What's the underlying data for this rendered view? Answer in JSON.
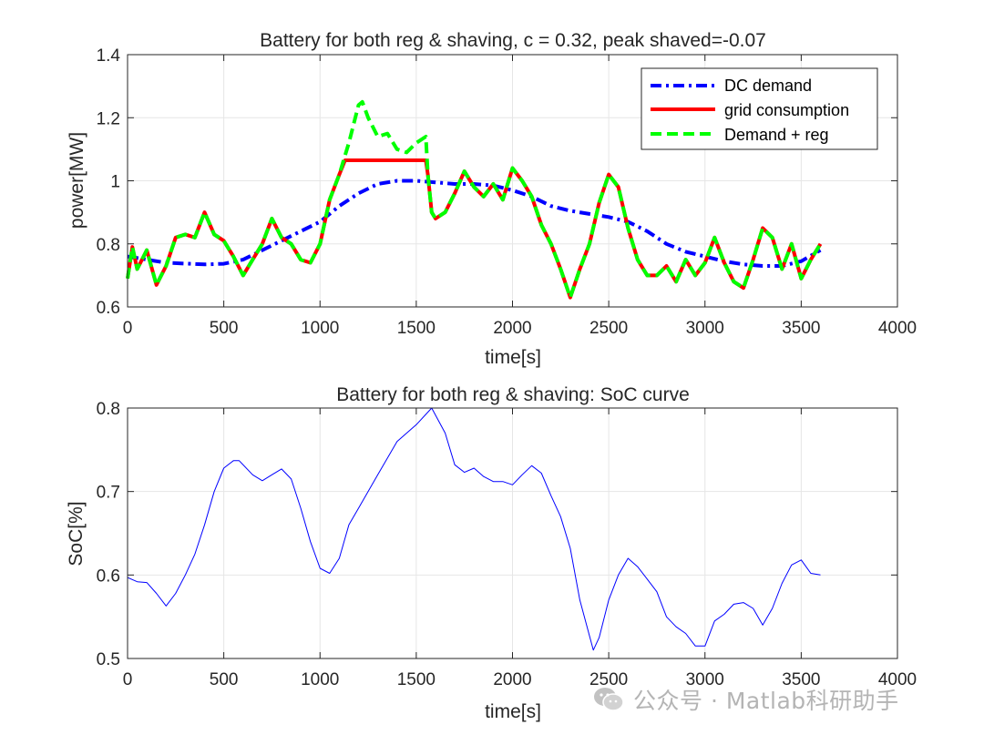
{
  "chart_data": [
    {
      "type": "line",
      "title": "Battery for both reg & shaving, c = 0.32, peak shaved=-0.07",
      "xlabel": "time[s]",
      "ylabel": "power[MW]",
      "xlim": [
        0,
        4000
      ],
      "ylim": [
        0.6,
        1.4
      ],
      "xticks": [
        0,
        500,
        1000,
        1500,
        2000,
        2500,
        3000,
        3500,
        4000
      ],
      "yticks": [
        0.6,
        0.8,
        1,
        1.2,
        1.4
      ],
      "ytick_labels": [
        "0.6",
        "0.8",
        "1",
        "1.2",
        "1.4"
      ],
      "grid": true,
      "legend_position": "top-right",
      "series": [
        {
          "name": "DC demand",
          "color": "#0000ff",
          "style": "dashdot",
          "x": [
            0,
            200,
            400,
            500,
            600,
            700,
            800,
            900,
            1000,
            1100,
            1200,
            1300,
            1400,
            1500,
            1600,
            1700,
            1800,
            1900,
            2000,
            2100,
            2200,
            2300,
            2400,
            2500,
            2600,
            2700,
            2800,
            2900,
            3000,
            3100,
            3200,
            3300,
            3400,
            3500,
            3600
          ],
          "y": [
            0.76,
            0.74,
            0.735,
            0.737,
            0.75,
            0.78,
            0.81,
            0.84,
            0.87,
            0.92,
            0.96,
            0.99,
            1.0,
            1.0,
            0.995,
            0.99,
            0.99,
            0.985,
            0.97,
            0.95,
            0.92,
            0.905,
            0.895,
            0.885,
            0.87,
            0.84,
            0.8,
            0.775,
            0.76,
            0.745,
            0.735,
            0.73,
            0.73,
            0.745,
            0.78
          ]
        },
        {
          "name": "grid consumption",
          "color": "#ff0000",
          "style": "solid",
          "x": [
            0,
            25,
            50,
            100,
            150,
            200,
            250,
            300,
            350,
            400,
            450,
            500,
            550,
            600,
            650,
            700,
            750,
            800,
            850,
            900,
            950,
            1000,
            1050,
            1100,
            1130,
            1550,
            1560,
            1580,
            1600,
            1650,
            1700,
            1750,
            1800,
            1850,
            1900,
            1950,
            2000,
            2050,
            2100,
            2150,
            2200,
            2250,
            2300,
            2350,
            2400,
            2450,
            2500,
            2550,
            2600,
            2650,
            2700,
            2750,
            2800,
            2850,
            2900,
            2950,
            3000,
            3050,
            3100,
            3150,
            3200,
            3250,
            3300,
            3350,
            3400,
            3450,
            3500,
            3550,
            3600
          ],
          "y": [
            0.69,
            0.79,
            0.72,
            0.78,
            0.67,
            0.73,
            0.82,
            0.83,
            0.82,
            0.9,
            0.83,
            0.81,
            0.76,
            0.7,
            0.75,
            0.8,
            0.88,
            0.82,
            0.8,
            0.75,
            0.74,
            0.8,
            0.94,
            1.02,
            1.065,
            1.065,
            1.02,
            0.9,
            0.88,
            0.9,
            0.96,
            1.03,
            0.98,
            0.95,
            0.99,
            0.94,
            1.04,
            1.0,
            0.95,
            0.86,
            0.8,
            0.72,
            0.63,
            0.72,
            0.8,
            0.93,
            1.02,
            0.98,
            0.85,
            0.75,
            0.7,
            0.7,
            0.73,
            0.68,
            0.75,
            0.7,
            0.74,
            0.82,
            0.74,
            0.68,
            0.66,
            0.75,
            0.85,
            0.82,
            0.72,
            0.8,
            0.69,
            0.75,
            0.8
          ]
        },
        {
          "name": "Demand + reg",
          "color": "#00ff00",
          "style": "dashed",
          "x": [
            0,
            25,
            50,
            100,
            150,
            200,
            250,
            300,
            350,
            400,
            450,
            500,
            550,
            600,
            650,
            700,
            750,
            800,
            850,
            900,
            950,
            1000,
            1050,
            1100,
            1150,
            1200,
            1220,
            1250,
            1300,
            1350,
            1400,
            1450,
            1500,
            1550,
            1560,
            1580,
            1600,
            1650,
            1700,
            1750,
            1800,
            1850,
            1900,
            1950,
            2000,
            2050,
            2100,
            2150,
            2200,
            2250,
            2300,
            2350,
            2400,
            2450,
            2500,
            2550,
            2600,
            2650,
            2700,
            2750,
            2800,
            2850,
            2900,
            2950,
            3000,
            3050,
            3100,
            3150,
            3200,
            3250,
            3300,
            3350,
            3400,
            3450,
            3500,
            3550,
            3600
          ],
          "y": [
            0.69,
            0.79,
            0.72,
            0.78,
            0.67,
            0.73,
            0.82,
            0.83,
            0.82,
            0.9,
            0.83,
            0.81,
            0.76,
            0.7,
            0.75,
            0.8,
            0.88,
            0.82,
            0.8,
            0.75,
            0.74,
            0.8,
            0.94,
            1.02,
            1.12,
            1.24,
            1.25,
            1.2,
            1.14,
            1.15,
            1.1,
            1.09,
            1.12,
            1.14,
            1.02,
            0.9,
            0.88,
            0.9,
            0.96,
            1.03,
            0.98,
            0.95,
            0.99,
            0.94,
            1.04,
            1.0,
            0.95,
            0.86,
            0.8,
            0.72,
            0.63,
            0.72,
            0.8,
            0.93,
            1.02,
            0.98,
            0.85,
            0.75,
            0.7,
            0.7,
            0.73,
            0.68,
            0.75,
            0.7,
            0.74,
            0.82,
            0.74,
            0.68,
            0.66,
            0.75,
            0.85,
            0.82,
            0.72,
            0.8,
            0.69,
            0.75,
            0.8
          ]
        }
      ]
    },
    {
      "type": "line",
      "title": "Battery for both reg & shaving: SoC curve",
      "xlabel": "time[s]",
      "ylabel": "SoC[%]",
      "xlim": [
        0,
        4000
      ],
      "ylim": [
        0.5,
        0.8
      ],
      "xticks": [
        0,
        500,
        1000,
        1500,
        2000,
        2500,
        3000,
        3500,
        4000
      ],
      "yticks": [
        0.5,
        0.6,
        0.7,
        0.8
      ],
      "ytick_labels": [
        "0.5",
        "0.6",
        "0.7",
        "0.8"
      ],
      "grid": true,
      "series": [
        {
          "name": "SoC",
          "color": "#0000ff",
          "style": "solid",
          "x": [
            0,
            50,
            100,
            150,
            200,
            250,
            300,
            350,
            400,
            450,
            500,
            550,
            580,
            650,
            700,
            750,
            800,
            850,
            900,
            950,
            1000,
            1050,
            1100,
            1150,
            1200,
            1300,
            1400,
            1500,
            1580,
            1650,
            1700,
            1750,
            1800,
            1850,
            1900,
            1950,
            2000,
            2050,
            2100,
            2150,
            2200,
            2250,
            2300,
            2350,
            2420,
            2450,
            2500,
            2550,
            2600,
            2650,
            2700,
            2750,
            2800,
            2850,
            2900,
            2950,
            3000,
            3050,
            3100,
            3150,
            3200,
            3250,
            3300,
            3350,
            3400,
            3450,
            3500,
            3550,
            3600
          ],
          "y": [
            0.597,
            0.592,
            0.591,
            0.578,
            0.563,
            0.578,
            0.6,
            0.625,
            0.66,
            0.7,
            0.728,
            0.737,
            0.737,
            0.72,
            0.713,
            0.72,
            0.727,
            0.715,
            0.68,
            0.64,
            0.608,
            0.602,
            0.62,
            0.66,
            0.68,
            0.72,
            0.76,
            0.78,
            0.8,
            0.77,
            0.732,
            0.723,
            0.728,
            0.718,
            0.712,
            0.712,
            0.708,
            0.72,
            0.731,
            0.722,
            0.695,
            0.67,
            0.632,
            0.57,
            0.51,
            0.525,
            0.57,
            0.6,
            0.62,
            0.61,
            0.595,
            0.58,
            0.55,
            0.538,
            0.53,
            0.515,
            0.515,
            0.545,
            0.553,
            0.565,
            0.567,
            0.56,
            0.54,
            0.56,
            0.59,
            0.612,
            0.618,
            0.602,
            0.6
          ]
        }
      ]
    }
  ],
  "watermark": {
    "text": "公众号 · Matlab科研助手",
    "icon": "wechat-icon"
  }
}
